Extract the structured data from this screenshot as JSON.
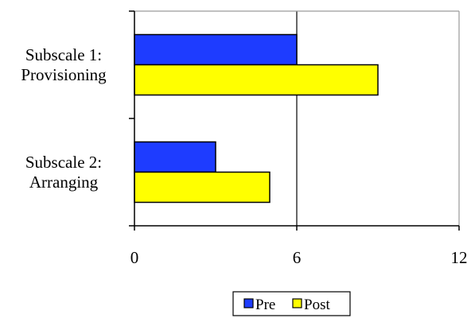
{
  "chart_data": {
    "type": "bar",
    "orientation": "horizontal",
    "categories": [
      [
        "Subscale 1:",
        "Provisioning"
      ],
      [
        "Subscale 2:",
        "Arranging"
      ]
    ],
    "series": [
      {
        "name": "Pre",
        "color": "#1e3cff",
        "values": [
          6,
          3
        ]
      },
      {
        "name": "Post",
        "color": "#ffff00",
        "values": [
          9,
          5
        ]
      }
    ],
    "xlim": [
      0,
      12
    ],
    "xticks": [
      "0",
      "6",
      "12"
    ],
    "grid": true,
    "legend": "bottom"
  }
}
